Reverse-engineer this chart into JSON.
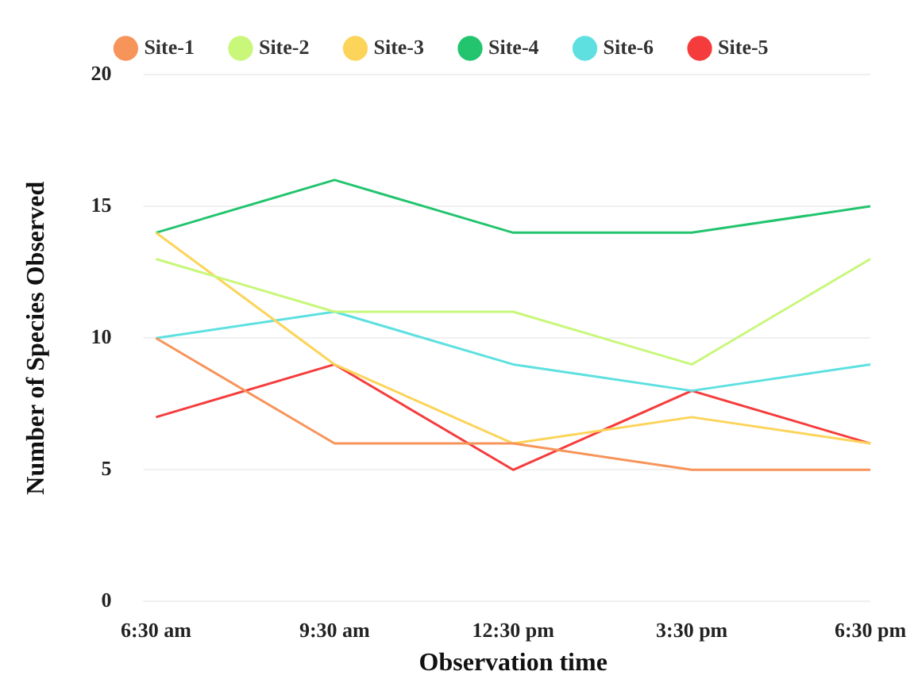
{
  "chart_data": {
    "type": "line",
    "xlabel": "Observation time",
    "ylabel": "Number of Species Observed",
    "categories": [
      "6:30 am",
      "9:30 am",
      "12:30 pm",
      "3:30 pm",
      "6:30 pm"
    ],
    "series": [
      {
        "name": "Site-1",
        "color": "#f7945a",
        "values": [
          10,
          6,
          6,
          5,
          5
        ]
      },
      {
        "name": "Site-2",
        "color": "#c8f77a",
        "values": [
          13,
          11,
          11,
          9,
          13
        ]
      },
      {
        "name": "Site-3",
        "color": "#fcd45a",
        "values": [
          14,
          9,
          6,
          7,
          6
        ]
      },
      {
        "name": "Site-4",
        "color": "#22c46e",
        "values": [
          14,
          16,
          14,
          14,
          15
        ]
      },
      {
        "name": "Site-6",
        "color": "#5ee0e0",
        "values": [
          10,
          11,
          9,
          8,
          9
        ]
      },
      {
        "name": "Site-5",
        "color": "#f53c3c",
        "values": [
          7,
          9,
          5,
          8,
          6
        ]
      }
    ],
    "ylim": [
      0,
      20
    ],
    "yticks": [
      0,
      5,
      10,
      15,
      20
    ],
    "grid": "y",
    "legend": "top",
    "marker": "none",
    "line_style": "solid"
  }
}
